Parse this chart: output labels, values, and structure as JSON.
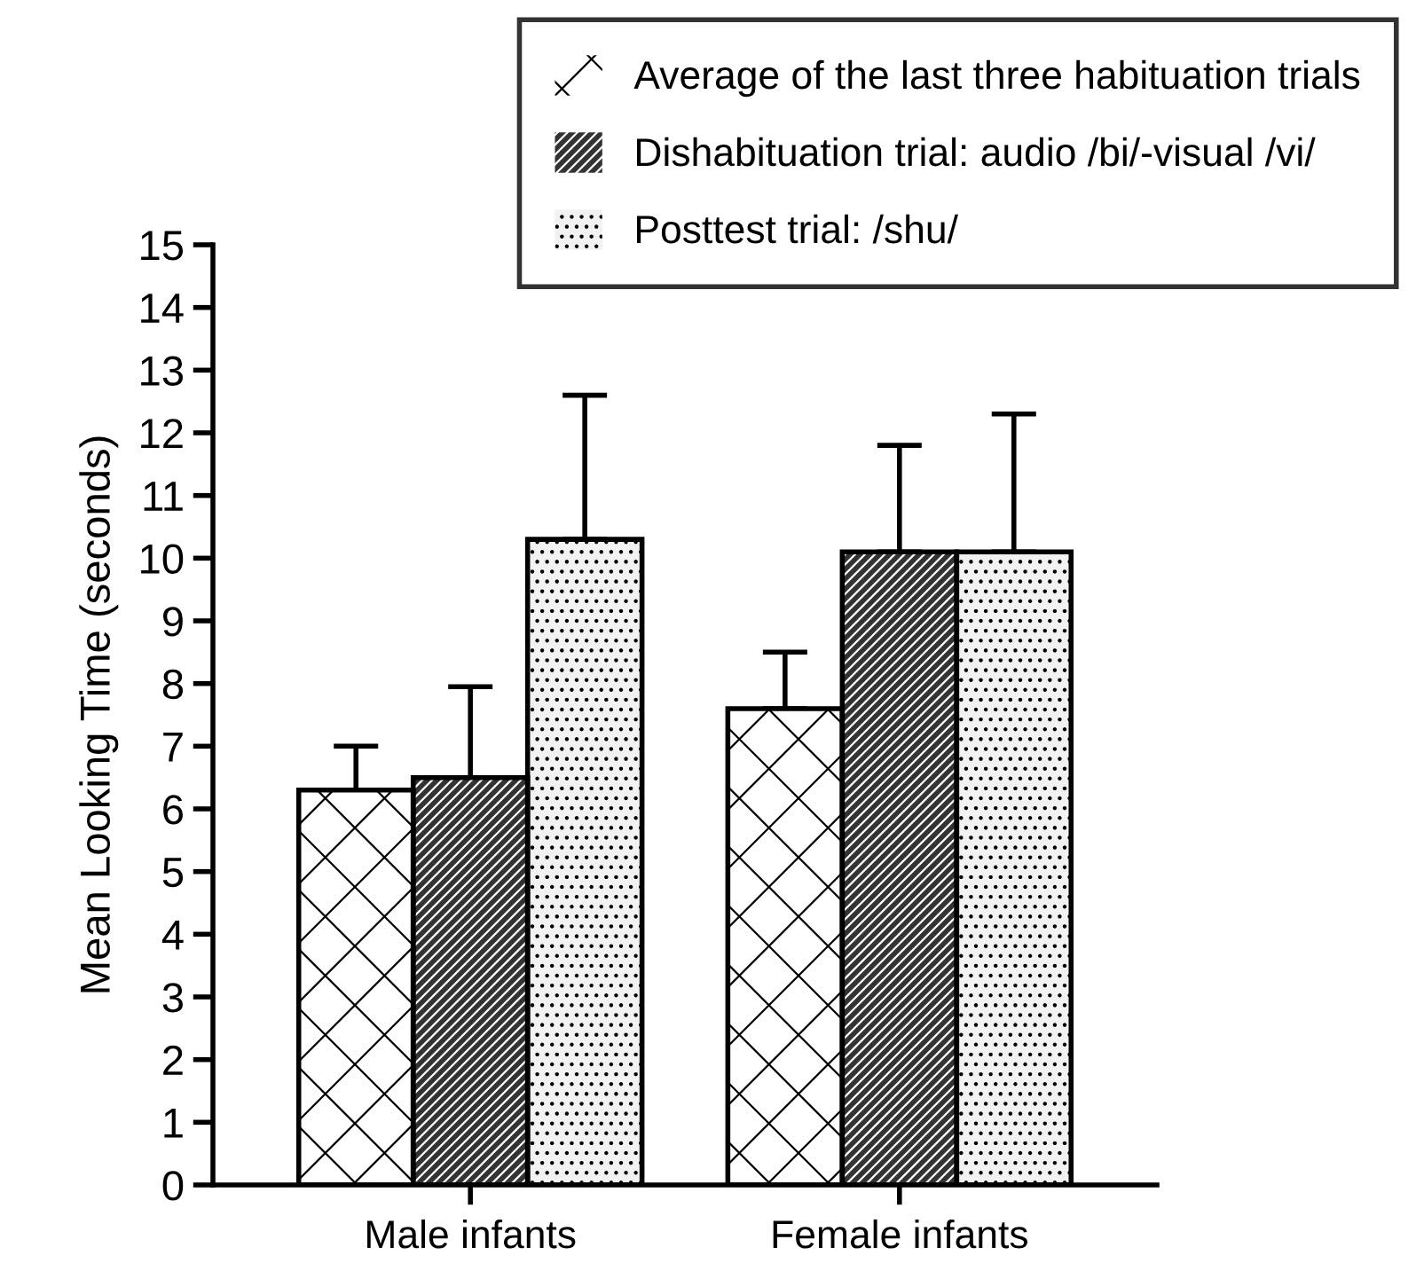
{
  "chart_data": {
    "type": "bar",
    "ylabel": "Mean Looking Time (seconds)",
    "categories": [
      "Male infants",
      "Female infants"
    ],
    "series": [
      {
        "name": "Average of the last three habituation trials",
        "color": "#ffffff",
        "values": [
          6.3,
          7.6
        ],
        "errors": [
          [
            6.3,
            7.0
          ],
          [
            7.6,
            8.5
          ]
        ]
      },
      {
        "name": "Dishabituation trial: audio /bi/-visual /vi/",
        "color": "#333333",
        "values": [
          6.5,
          10.1
        ],
        "errors": [
          [
            6.5,
            7.95
          ],
          [
            10.1,
            11.8
          ]
        ]
      },
      {
        "name": "Posttest trial: /shu/",
        "color": "#f2f2f2",
        "values": [
          10.3,
          10.1
        ],
        "errors": [
          [
            10.3,
            12.6
          ],
          [
            10.1,
            12.3
          ]
        ]
      }
    ],
    "ylim": [
      0,
      15
    ],
    "yticks": [
      0,
      1,
      2,
      3,
      4,
      5,
      6,
      7,
      8,
      9,
      10,
      11,
      12,
      13,
      14,
      15
    ],
    "legend": "top right"
  }
}
